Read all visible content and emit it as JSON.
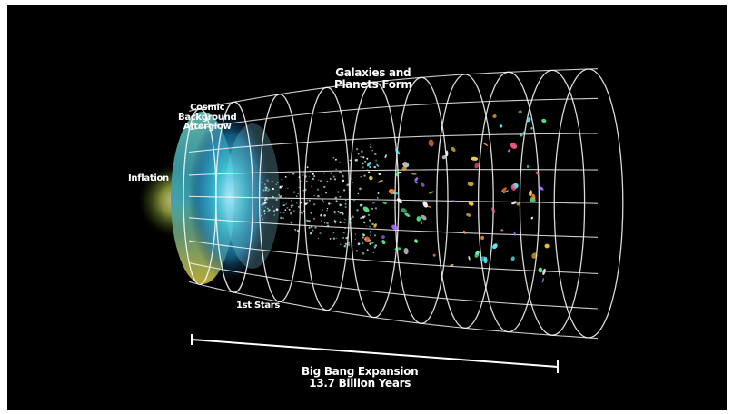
{
  "labels": {
    "galaxies_line1": "Galaxies and",
    "galaxies_line2": "Planets Form",
    "cosmic_line1": "Cosmic",
    "cosmic_line2": "Background",
    "cosmic_line3": "Afterglow",
    "inflation": "Inflation",
    "first_stars": "1st Stars",
    "bigbang_line1": "Big Bang Expansion",
    "bigbang_line2": "13.7 Billion Years"
  },
  "colors": {
    "background": "#000000",
    "grid": "#ffffff",
    "afterglow": "#2fb4c8",
    "inflation_glow": "#d8e060"
  }
}
